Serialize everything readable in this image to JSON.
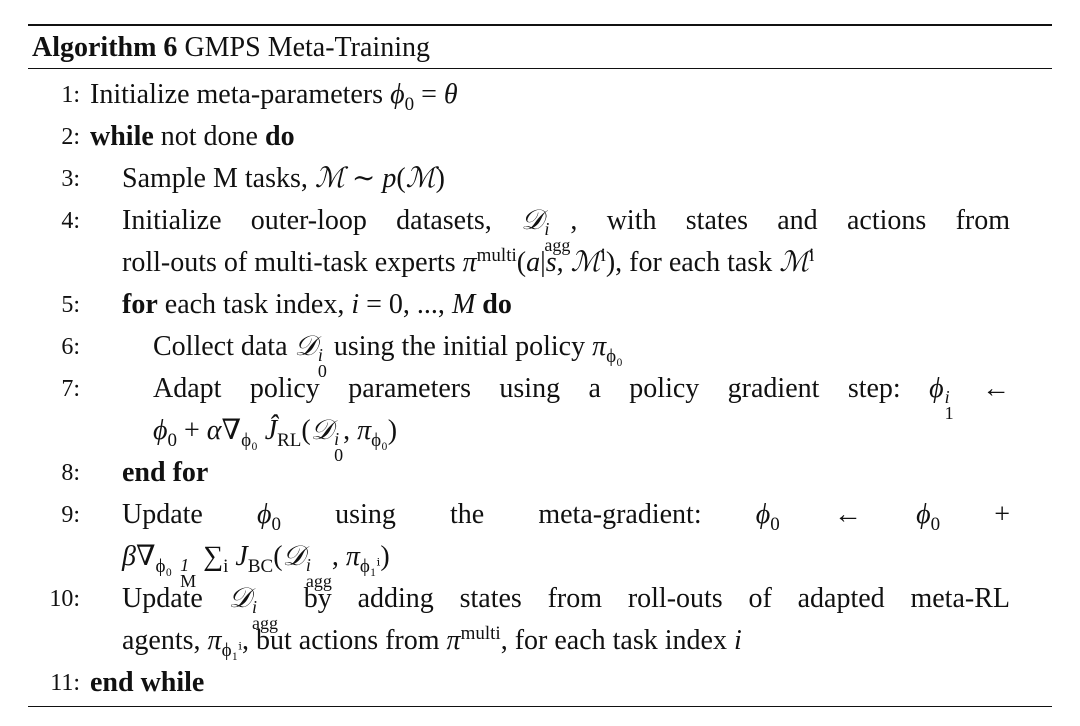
{
  "header": {
    "label": "Algorithm 6",
    "title": "GMPS Meta-Training"
  },
  "lines": [
    {
      "num": "1:",
      "indent": 0,
      "segments": [
        {
          "t": "Initialize meta-parameters "
        },
        {
          "m": "ϕ",
          "sub": "0"
        },
        {
          "t": " = "
        },
        {
          "m": "θ"
        }
      ]
    },
    {
      "num": "2:",
      "indent": 0,
      "segments": [
        {
          "b": "while"
        },
        {
          "t": " not done "
        },
        {
          "b": "do"
        }
      ]
    },
    {
      "num": "3:",
      "indent": 1,
      "segments": [
        {
          "t": "Sample M tasks, "
        },
        {
          "m": "ℳ"
        },
        {
          "t": " ∼ "
        },
        {
          "m": "p"
        },
        {
          "t": "("
        },
        {
          "m": "ℳ"
        },
        {
          "t": ")"
        }
      ]
    },
    {
      "num": "4:",
      "indent": 1,
      "justify": true,
      "segments": [
        {
          "t": "Initialize outer-loop datasets, "
        },
        {
          "m": "𝒟",
          "sup": "i",
          "sub": "agg"
        },
        {
          "t": ", with states and actions from"
        }
      ]
    },
    {
      "num": "",
      "indent": 1,
      "segments": [
        {
          "t": "roll-outs of multi-task experts "
        },
        {
          "m": "π",
          "sup": "multi"
        },
        {
          "t": "("
        },
        {
          "m": "a"
        },
        {
          "t": "|"
        },
        {
          "m": "s"
        },
        {
          "t": ", "
        },
        {
          "m": "ℳ",
          "sup": "i"
        },
        {
          "t": "), for each task "
        },
        {
          "m": "ℳ",
          "sup": "i"
        }
      ]
    },
    {
      "num": "5:",
      "indent": 1,
      "segments": [
        {
          "b": "for"
        },
        {
          "t": " each task index, "
        },
        {
          "m": "i"
        },
        {
          "t": " = 0, ..., "
        },
        {
          "m": "M"
        },
        {
          "t": " "
        },
        {
          "b": "do"
        }
      ]
    },
    {
      "num": "6:",
      "indent": 2,
      "segments": [
        {
          "t": "Collect data "
        },
        {
          "m": "𝒟",
          "sup": "i",
          "sub": "0"
        },
        {
          "t": " using the initial policy "
        },
        {
          "m": "π",
          "sub": "ϕ₀"
        }
      ]
    },
    {
      "num": "7:",
      "indent": 2,
      "justify": true,
      "segments": [
        {
          "t": "Adapt policy parameters using a policy gradient step: "
        },
        {
          "m": "ϕ",
          "sup": "i",
          "sub": "1"
        },
        {
          "t": " ←"
        }
      ]
    },
    {
      "num": "",
      "indent": 2,
      "segments": [
        {
          "m": "ϕ",
          "sub": "0"
        },
        {
          "t": " + "
        },
        {
          "m": "α"
        },
        {
          "t": "∇",
          "sub": "ϕ₀"
        },
        {
          "t": " "
        },
        {
          "m": "Ĵ",
          "sub": "RL"
        },
        {
          "t": "("
        },
        {
          "m": "𝒟",
          "sup": "i",
          "sub": "0"
        },
        {
          "t": ", "
        },
        {
          "m": "π",
          "sub": "ϕ₀"
        },
        {
          "t": ")"
        }
      ]
    },
    {
      "num": "8:",
      "indent": 1,
      "segments": [
        {
          "b": "end for"
        }
      ]
    },
    {
      "num": "9:",
      "indent": 1,
      "justify": true,
      "segments": [
        {
          "t": "Update "
        },
        {
          "m": "ϕ",
          "sub": "0"
        },
        {
          "t": " using the meta-gradient: "
        },
        {
          "m": "ϕ",
          "sub": "0"
        },
        {
          "t": " ← "
        },
        {
          "m": "ϕ",
          "sub": "0"
        },
        {
          "t": " +"
        }
      ]
    },
    {
      "num": "",
      "indent": 1,
      "segments": [
        {
          "m": "β"
        },
        {
          "t": "∇",
          "sub": "ϕ₀"
        },
        {
          "t": " ",
          "sup": "1",
          "sub": "M"
        },
        {
          "t": " ∑",
          "sub": "i"
        },
        {
          "t": " "
        },
        {
          "m": "J",
          "sub": "BC"
        },
        {
          "t": "("
        },
        {
          "m": "𝒟",
          "sup": "i",
          "sub": "agg"
        },
        {
          "t": ", "
        },
        {
          "m": "π",
          "sub": "ϕ₁ⁱ"
        },
        {
          "t": ")"
        }
      ]
    },
    {
      "num": "10:",
      "indent": 1,
      "justify": true,
      "segments": [
        {
          "t": "Update "
        },
        {
          "m": "𝒟",
          "sup": "i",
          "sub": "agg"
        },
        {
          "t": " by adding states from roll-outs of adapted meta-RL"
        }
      ]
    },
    {
      "num": "",
      "indent": 1,
      "segments": [
        {
          "t": "agents, "
        },
        {
          "m": "π",
          "sub": "ϕ₁ⁱ"
        },
        {
          "t": ", but actions from "
        },
        {
          "m": "π",
          "sup": "multi"
        },
        {
          "t": ", for each task index "
        },
        {
          "m": "i"
        }
      ]
    },
    {
      "num": "11:",
      "indent": 0,
      "segments": [
        {
          "b": "end while"
        }
      ]
    }
  ]
}
